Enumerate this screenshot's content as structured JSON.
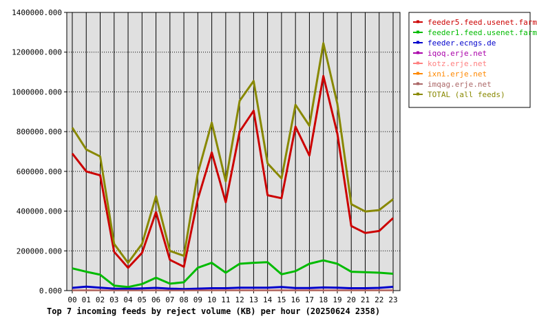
{
  "chart_data": {
    "type": "line",
    "title": "Top 7 incoming feeds by reject volume (KB) per hour (20250624 2358)",
    "xlabel": "",
    "ylabel": "",
    "ylim": [
      0,
      1400000
    ],
    "yticks": [
      "0.000",
      "200000.000",
      "400000.000",
      "600000.000",
      "800000.000",
      "1000000.000",
      "1200000.000",
      "1400000.000"
    ],
    "categories": [
      "00",
      "01",
      "02",
      "03",
      "04",
      "05",
      "06",
      "07",
      "08",
      "09",
      "10",
      "11",
      "12",
      "13",
      "14",
      "15",
      "16",
      "17",
      "18",
      "19",
      "20",
      "21",
      "22",
      "23"
    ],
    "grid": true,
    "legend_position": "right",
    "series": [
      {
        "name": "feeder5.feed.usenet.farm",
        "color": "#cc0000",
        "values": [
          690000,
          600000,
          580000,
          195000,
          115000,
          190000,
          395000,
          155000,
          120000,
          460000,
          695000,
          445000,
          800000,
          905000,
          480000,
          465000,
          825000,
          680000,
          1080000,
          790000,
          325000,
          290000,
          300000,
          365000
        ]
      },
      {
        "name": "feeder1.feed.usenet.farm",
        "color": "#00bb00",
        "values": [
          112000,
          95000,
          80000,
          25000,
          18000,
          33000,
          65000,
          35000,
          42000,
          115000,
          140000,
          90000,
          135000,
          140000,
          143000,
          82000,
          98000,
          135000,
          152000,
          135000,
          95000,
          93000,
          90000,
          85000
        ]
      },
      {
        "name": "feeder.ecngs.de",
        "color": "#0000cc",
        "values": [
          14000,
          20000,
          15000,
          10000,
          9000,
          11000,
          14000,
          10000,
          8000,
          10000,
          12000,
          12000,
          15000,
          15000,
          15000,
          18000,
          13000,
          13000,
          16000,
          15000,
          12000,
          12000,
          14000,
          19000
        ]
      },
      {
        "name": "iqoq.erje.net",
        "color": "#aa00aa",
        "values": [
          2000,
          2000,
          2000,
          1500,
          1500,
          1500,
          2000,
          1500,
          1500,
          2000,
          2000,
          2000,
          2000,
          2000,
          2000,
          2000,
          2000,
          2000,
          2000,
          2000,
          2000,
          2000,
          2000,
          2000
        ]
      },
      {
        "name": "kotz.erje.net",
        "color": "#ff8080",
        "values": [
          1500,
          1500,
          1500,
          1000,
          1000,
          1000,
          1500,
          1000,
          1000,
          1500,
          1500,
          1500,
          1500,
          1500,
          1500,
          1500,
          1500,
          1500,
          1500,
          1500,
          1500,
          1500,
          1500,
          1500
        ]
      },
      {
        "name": "ixni.erje.net",
        "color": "#ff8800",
        "values": [
          1000,
          1000,
          1000,
          800,
          800,
          800,
          1000,
          800,
          800,
          1000,
          1000,
          1000,
          1000,
          1000,
          1000,
          1000,
          1000,
          1000,
          1000,
          1000,
          1000,
          1000,
          1000,
          1000
        ]
      },
      {
        "name": "imqag.erje.net",
        "color": "#aa6666",
        "values": [
          800,
          800,
          800,
          600,
          600,
          600,
          800,
          600,
          600,
          800,
          800,
          800,
          800,
          800,
          800,
          800,
          800,
          800,
          800,
          800,
          800,
          800,
          800,
          800
        ]
      },
      {
        "name": "TOTAL (all feeds)",
        "color": "#888800",
        "values": [
          820000,
          710000,
          675000,
          235000,
          140000,
          235000,
          475000,
          200000,
          175000,
          590000,
          845000,
          550000,
          955000,
          1055000,
          640000,
          565000,
          935000,
          830000,
          1245000,
          940000,
          435000,
          398000,
          405000,
          460000
        ]
      }
    ]
  }
}
